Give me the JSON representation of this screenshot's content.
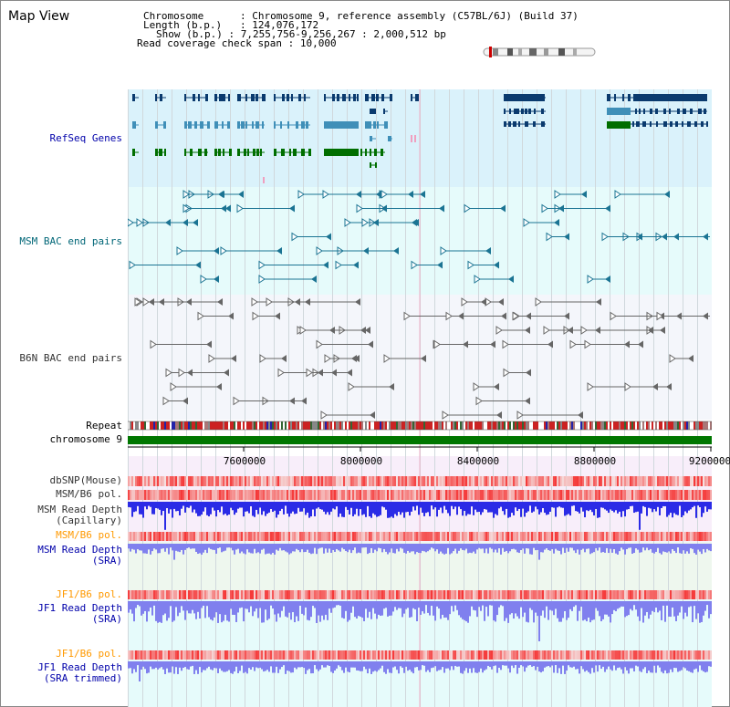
{
  "title": "Map View",
  "header": {
    "chromosome_label": "Chromosome",
    "chromosome_value": "Chromosome 9, reference assembly (C57BL/6J) (Build 37)",
    "length_label": "Length (b.p.)",
    "length_value": "124,076,172",
    "show_label": "Show (b.p.)",
    "show_value": "7,255,756-9,256,267 : 2,000,512 bp",
    "coverage_label": "Read coverage check span",
    "coverage_value": "10,000"
  },
  "tracks": {
    "refseq": "RefSeq Genes",
    "msm_bac": "MSM BAC end pairs",
    "b6n_bac": "B6N BAC end pairs",
    "repeat": "Repeat",
    "chromosome": "chromosome 9",
    "dbsnp": "dbSNP(Mouse)",
    "msm_b6_pol_1": "MSM/B6 pol.",
    "msm_read_depth_cap_1": "MSM Read Depth",
    "msm_read_depth_cap_2": "(Capillary)",
    "msm_b6_pol_2": "MSM/B6 pol.",
    "msm_read_depth_sra_1": "MSM Read Depth",
    "msm_read_depth_sra_2": "(SRA)",
    "jf1_b6_pol_1": "JF1/B6 pol.",
    "jf1_read_depth_sra_1": "JF1 Read Depth",
    "jf1_read_depth_sra_2": "(SRA)",
    "jf1_b6_pol_2": "JF1/B6 pol.",
    "jf1_read_depth_trim_1": "JF1 Read Depth",
    "jf1_read_depth_trim_2": "(SRA trimmed)"
  },
  "axis": {
    "ticks": [
      "7600000",
      "8000000",
      "8400000",
      "8800000",
      "9200000"
    ],
    "start": 7255756,
    "end": 9256267
  },
  "colors": {
    "refseq_bg": "#daf2fb",
    "msm_bg": "#e6fbfb",
    "b6n_bg": "#f4f6fb",
    "gene_dark": "#0a3a6e",
    "gene_light": "#3f8fb8",
    "gene_green": "#006e00",
    "bac_teal": "#1b7493",
    "bac_gray": "#666666",
    "chromosome": "#007700",
    "depth_blue": "#2b2be6",
    "depth_light": "#8080ee",
    "pol_red": "#f04040"
  }
}
